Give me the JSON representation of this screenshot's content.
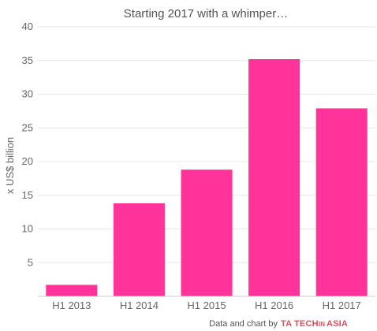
{
  "chart_data": {
    "type": "bar",
    "title": "Starting 2017 with a whimper…",
    "ylabel": "x US$ billion",
    "xlabel": "",
    "categories": [
      "H1 2013",
      "H1 2014",
      "H1 2015",
      "H1 2016",
      "H1 2017"
    ],
    "values": [
      1.7,
      13.8,
      18.8,
      35.2,
      27.9
    ],
    "ylim": [
      0,
      40
    ],
    "yticks": [
      5,
      10,
      15,
      20,
      25,
      30,
      35,
      40
    ],
    "grid": true,
    "legend": "none",
    "bar_color": "#ff3399"
  },
  "credit": {
    "prefix": "Data and chart by",
    "brand_mark": "TA",
    "brand_word1": "TECH",
    "brand_small": "IN",
    "brand_word2": "ASIA",
    "brand_color": "#e24b5b"
  }
}
